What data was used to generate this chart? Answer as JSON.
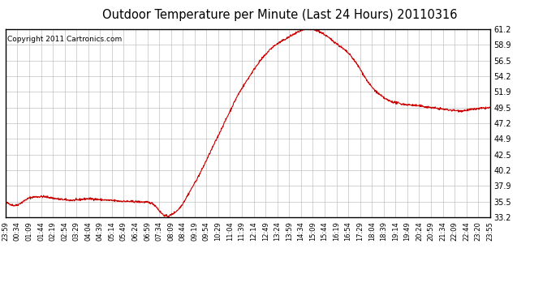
{
  "title": "Outdoor Temperature per Minute (Last 24 Hours) 20110316",
  "copyright": "Copyright 2011 Cartronics.com",
  "line_color": "#cc0000",
  "background_color": "#ffffff",
  "plot_bg_color": "#ffffff",
  "grid_color": "#bbbbbb",
  "ylim": [
    33.2,
    61.2
  ],
  "yticks": [
    33.2,
    35.5,
    37.9,
    40.2,
    42.5,
    44.9,
    47.2,
    49.5,
    51.9,
    54.2,
    56.5,
    58.9,
    61.2
  ],
  "xtick_labels": [
    "23:59",
    "00:34",
    "01:09",
    "01:44",
    "02:19",
    "02:54",
    "03:29",
    "04:04",
    "04:39",
    "05:14",
    "05:49",
    "06:24",
    "06:59",
    "07:34",
    "08:09",
    "08:44",
    "09:19",
    "09:54",
    "10:29",
    "11:04",
    "11:39",
    "12:14",
    "12:49",
    "13:24",
    "13:59",
    "14:34",
    "15:09",
    "15:44",
    "16:19",
    "16:54",
    "17:29",
    "18:04",
    "18:39",
    "19:14",
    "19:49",
    "20:24",
    "20:59",
    "21:34",
    "22:09",
    "22:44",
    "23:20",
    "23:55"
  ],
  "num_points": 1440,
  "waypoints_x": [
    0.0,
    0.02,
    0.05,
    0.08,
    0.11,
    0.14,
    0.17,
    0.2,
    0.24,
    0.28,
    0.3,
    0.31,
    0.315,
    0.325,
    0.335,
    0.36,
    0.4,
    0.44,
    0.48,
    0.52,
    0.55,
    0.58,
    0.61,
    0.63,
    0.65,
    0.68,
    0.71,
    0.73,
    0.75,
    0.77,
    0.79,
    0.82,
    0.85,
    0.88,
    0.91,
    0.94,
    0.97,
    1.0
  ],
  "waypoints_y": [
    35.5,
    34.8,
    36.2,
    36.3,
    35.9,
    35.7,
    36.0,
    35.8,
    35.6,
    35.5,
    35.4,
    35.1,
    34.3,
    33.5,
    33.2,
    34.5,
    39.5,
    45.5,
    51.5,
    56.0,
    58.5,
    59.8,
    61.0,
    61.2,
    60.8,
    59.2,
    57.5,
    55.5,
    53.0,
    51.5,
    50.5,
    50.0,
    49.8,
    49.5,
    49.2,
    49.0,
    49.3,
    49.5
  ]
}
